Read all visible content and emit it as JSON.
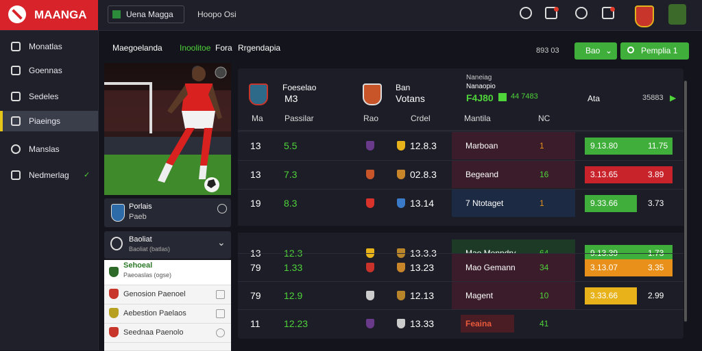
{
  "header": {
    "logo": "MAANGA",
    "tab": "Uena Magga",
    "breadcrumb": "Hoopo Osi"
  },
  "sidebar": [
    "Monatlas",
    "Goennas",
    "Sedeles",
    "Piaeings",
    "Manslas",
    "Nedmerlag"
  ],
  "subnav": [
    "Maegoelanda",
    "Inoolitoe",
    "Fora",
    "Rrgendapia"
  ],
  "toolbar": {
    "counter": "893 03",
    "filter": "Bao",
    "action": "Pemplia 1"
  },
  "left_panel": {
    "card": {
      "title": "Porlais",
      "subtitle": "Paeb"
    },
    "dropdown": {
      "title": "Baoliat",
      "subtitle": "Baoliat (batlas)"
    },
    "list": [
      {
        "title": "Sehoeal",
        "subtitle": "Paeoaslas (ogse)"
      },
      {
        "title": "Genosion Paenoel"
      },
      {
        "title": "Aebestion Paelaos"
      },
      {
        "title": "Seednaa Paenolo"
      }
    ]
  },
  "table": {
    "home": {
      "name": "Foeselao",
      "code": "M3"
    },
    "away": {
      "name": "Ban",
      "code": "Votans"
    },
    "market": {
      "title": "Naneiag",
      "subtitle": "Nanaopio",
      "value": "F4J80",
      "extra": "44 7483"
    },
    "side": "Ata",
    "total": "35883",
    "columns": [
      "Ma",
      "Passilar",
      "Rao",
      "Crdel",
      "Mantila",
      "NC"
    ],
    "rows": [
      [
        "13",
        "5.5",
        "12.8.3",
        "Marboan",
        "1",
        "9.13.80",
        "11.75"
      ],
      [
        "13",
        "7.3",
        "02.8.3",
        "Begeand",
        "16",
        "3.13.65",
        "3.89"
      ],
      [
        "19",
        "8.3",
        "13.14",
        "7 Ntotaget",
        "1",
        "9.33.66",
        "3.73"
      ],
      [
        "13",
        "12.3",
        "13.3.3",
        "Mao Menndry",
        "64",
        "9.13.39",
        "1.73"
      ],
      [
        "79",
        "1.33",
        "13.23",
        "Mao Gemann",
        "34",
        "3.13.07",
        "3.35"
      ],
      [
        "79",
        "12.9",
        "12.13",
        "Magent",
        "10",
        "3.33.66",
        "2.99"
      ],
      [
        "11",
        "12.23",
        "13.33",
        "Feaina",
        "41"
      ]
    ]
  }
}
